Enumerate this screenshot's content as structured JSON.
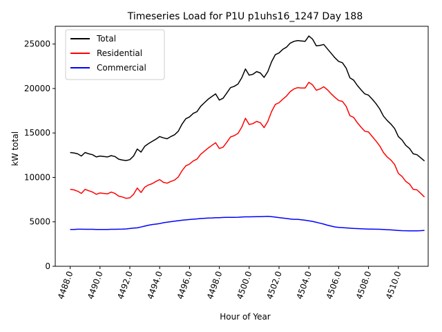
{
  "chart_data": {
    "type": "line",
    "title": "Timeseries Load for P1U p1uhs16_1247  Day 188",
    "xlabel": "Hour of Year",
    "ylabel": "kW total",
    "xlim": [
      4487.0,
      4512.0
    ],
    "ylim": [
      0,
      27000
    ],
    "xticks": [
      4488,
      4490,
      4492,
      4494,
      4496,
      4498,
      4500,
      4502,
      4504,
      4506,
      4508,
      4510
    ],
    "xtick_labels": [
      "4488.0",
      "4490.0",
      "4492.0",
      "4494.0",
      "4496.0",
      "4498.0",
      "4500.0",
      "4502.0",
      "4504.0",
      "4506.0",
      "4508.0",
      "4510.0"
    ],
    "yticks": [
      0,
      5000,
      10000,
      15000,
      20000,
      25000
    ],
    "ytick_labels": [
      "0",
      "5000",
      "10000",
      "15000",
      "20000",
      "25000"
    ],
    "legend_position": "top-left",
    "x": [
      4488.0,
      4488.25,
      4488.5,
      4488.75,
      4489.0,
      4489.25,
      4489.5,
      4489.75,
      4490.0,
      4490.25,
      4490.5,
      4490.75,
      4491.0,
      4491.25,
      4491.5,
      4491.75,
      4492.0,
      4492.25,
      4492.5,
      4492.75,
      4493.0,
      4493.25,
      4493.5,
      4493.75,
      4494.0,
      4494.25,
      4494.5,
      4494.75,
      4495.0,
      4495.25,
      4495.5,
      4495.75,
      4496.0,
      4496.25,
      4496.5,
      4496.75,
      4497.0,
      4497.25,
      4497.5,
      4497.75,
      4498.0,
      4498.25,
      4498.5,
      4498.75,
      4499.0,
      4499.25,
      4499.5,
      4499.75,
      4500.0,
      4500.25,
      4500.5,
      4500.75,
      4501.0,
      4501.25,
      4501.5,
      4501.75,
      4502.0,
      4502.25,
      4502.5,
      4502.75,
      4503.0,
      4503.25,
      4503.5,
      4503.75,
      4504.0,
      4504.25,
      4504.5,
      4504.75,
      4505.0,
      4505.25,
      4505.5,
      4505.75,
      4506.0,
      4506.25,
      4506.5,
      4506.75,
      4507.0,
      4507.25,
      4507.5,
      4507.75,
      4508.0,
      4508.25,
      4508.5,
      4508.75,
      4509.0,
      4509.25,
      4509.5,
      4509.75,
      4510.0,
      4510.25,
      4510.5,
      4510.75,
      4511.0,
      4511.25,
      4511.5,
      4511.75
    ],
    "series": [
      {
        "name": "Total",
        "color": "#000000",
        "values": [
          12800,
          12750,
          12650,
          12400,
          12800,
          12650,
          12550,
          12300,
          12400,
          12350,
          12300,
          12450,
          12350,
          12050,
          11950,
          11900,
          12000,
          12400,
          13200,
          12850,
          13500,
          13800,
          14050,
          14300,
          14600,
          14450,
          14350,
          14600,
          14800,
          15200,
          16000,
          16600,
          16800,
          17200,
          17400,
          18000,
          18400,
          18800,
          19100,
          19400,
          18700,
          18900,
          19500,
          20100,
          20250,
          20500,
          21200,
          22200,
          21500,
          21600,
          21900,
          21750,
          21250,
          21900,
          23000,
          23800,
          24000,
          24400,
          24650,
          25100,
          25300,
          25400,
          25350,
          25300,
          25900,
          25550,
          24800,
          24850,
          24950,
          24450,
          23950,
          23450,
          23050,
          22900,
          22300,
          21200,
          20950,
          20350,
          19850,
          19400,
          19250,
          18800,
          18300,
          17700,
          16900,
          16400,
          16000,
          15500,
          14600,
          14200,
          13600,
          13250,
          12650,
          12550,
          12200,
          11850
        ]
      },
      {
        "name": "Residential",
        "color": "#ff0000",
        "values": [
          8650,
          8600,
          8450,
          8200,
          8650,
          8500,
          8350,
          8100,
          8250,
          8200,
          8150,
          8350,
          8200,
          7900,
          7800,
          7650,
          7700,
          8100,
          8800,
          8300,
          8900,
          9150,
          9300,
          9550,
          9750,
          9450,
          9350,
          9550,
          9700,
          10050,
          10750,
          11300,
          11500,
          11850,
          12050,
          12600,
          12950,
          13300,
          13600,
          13900,
          13250,
          13400,
          13950,
          14550,
          14700,
          14950,
          15650,
          16650,
          15950,
          16050,
          16300,
          16150,
          15600,
          16300,
          17400,
          18200,
          18400,
          18800,
          19150,
          19650,
          19950,
          20100,
          20050,
          20050,
          20700,
          20400,
          19800,
          19950,
          20200,
          19850,
          19400,
          19000,
          18650,
          18550,
          18000,
          16950,
          16750,
          16150,
          15650,
          15200,
          15100,
          14600,
          14100,
          13550,
          12800,
          12300,
          11950,
          11450,
          10450,
          10100,
          9550,
          9250,
          8650,
          8600,
          8200,
          7800
        ]
      },
      {
        "name": "Commercial",
        "color": "#0000ff",
        "values": [
          4150,
          4150,
          4170,
          4170,
          4160,
          4160,
          4160,
          4150,
          4150,
          4150,
          4150,
          4160,
          4160,
          4170,
          4180,
          4200,
          4250,
          4300,
          4330,
          4420,
          4520,
          4620,
          4700,
          4750,
          4800,
          4900,
          4960,
          5020,
          5080,
          5130,
          5180,
          5220,
          5260,
          5300,
          5330,
          5380,
          5400,
          5430,
          5440,
          5460,
          5470,
          5490,
          5500,
          5510,
          5510,
          5520,
          5540,
          5560,
          5560,
          5570,
          5580,
          5590,
          5600,
          5620,
          5580,
          5530,
          5480,
          5430,
          5380,
          5320,
          5280,
          5280,
          5240,
          5180,
          5120,
          5050,
          4950,
          4850,
          4750,
          4620,
          4520,
          4430,
          4380,
          4350,
          4320,
          4290,
          4260,
          4240,
          4220,
          4200,
          4190,
          4180,
          4170,
          4160,
          4150,
          4120,
          4090,
          4060,
          4030,
          4010,
          4000,
          3990,
          3990,
          3990,
          4010,
          4040
        ]
      }
    ]
  }
}
